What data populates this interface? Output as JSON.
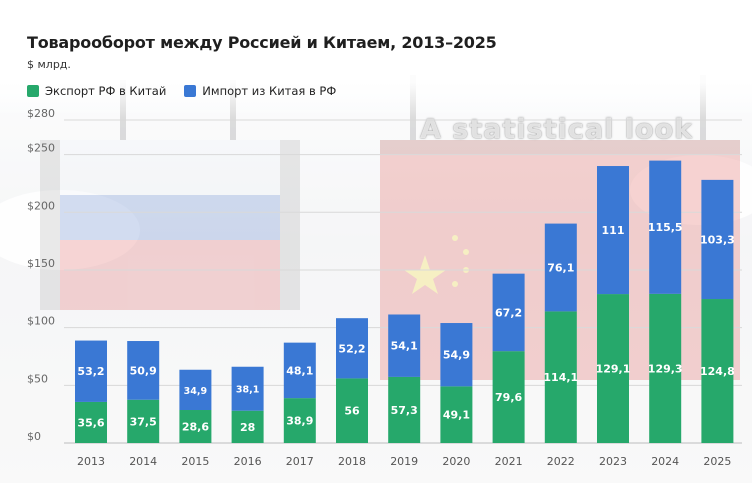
{
  "header": {
    "title": "Товарооборот между Россией и Китаем, 2013–2025",
    "subtitle": "$ млрд."
  },
  "watermark": "A statistical look",
  "colors": {
    "export": "#26a86b",
    "import": "#3a78d4"
  },
  "chart_data": {
    "type": "bar",
    "stacked": true,
    "title": "Товарооборот между Россией и Китаем, 2013–2025",
    "subtitle": "$ млрд.",
    "categories": [
      "2013",
      "2014",
      "2015",
      "2016",
      "2017",
      "2018",
      "2019",
      "2020",
      "2021",
      "2022",
      "2023",
      "2024",
      "2025"
    ],
    "series": [
      {
        "name": "Экспорт РФ в Китай",
        "color": "#26a86b",
        "values": [
          35.6,
          37.5,
          28.6,
          28,
          38.9,
          56,
          57.3,
          49.1,
          79.6,
          114.1,
          129.1,
          129.3,
          124.8
        ],
        "labels": [
          "35,6",
          "37,5",
          "28,6",
          "28",
          "38,9",
          "56",
          "57,3",
          "49,1",
          "79,6",
          "114,1",
          "129,1",
          "129,3",
          "124,8"
        ]
      },
      {
        "name": "Импорт из Китая в РФ",
        "color": "#3a78d4",
        "values": [
          53.2,
          50.9,
          34.9,
          38.1,
          48.1,
          52.2,
          54.1,
          54.9,
          67.2,
          76.1,
          111,
          115.5,
          103.3
        ],
        "labels": [
          "53,2",
          "50,9",
          "34,9",
          "38,1",
          "48,1",
          "52,2",
          "54,1",
          "54,9",
          "67,2",
          "76,1",
          "111",
          "115,5",
          "103,3"
        ]
      }
    ],
    "y_ticks": [
      "$0",
      "$50",
      "$100",
      "$150",
      "$200",
      "$250",
      "$280"
    ],
    "y_tick_values": [
      0,
      50,
      100,
      150,
      200,
      250,
      280
    ],
    "ylim": [
      0,
      280
    ],
    "legend": "top-left",
    "grid": true
  }
}
